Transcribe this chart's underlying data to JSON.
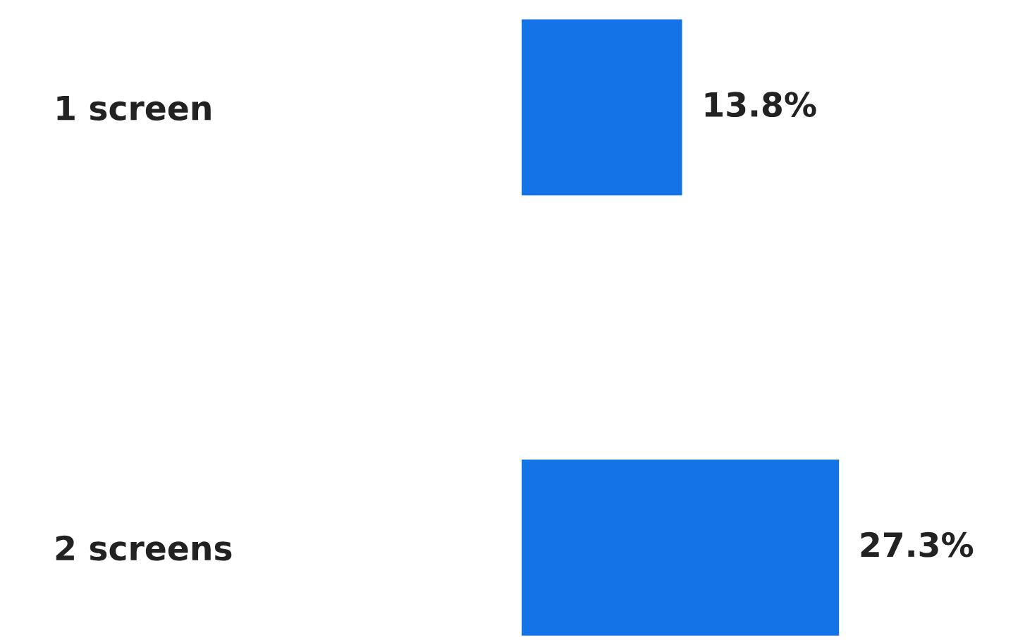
{
  "chart_data": {
    "type": "bar",
    "orientation": "horizontal",
    "categories": [
      "1 screen",
      "2 screens"
    ],
    "values": [
      13.8,
      27.3
    ],
    "color": "#1473e6",
    "value_labels": [
      "13.8%",
      "27.3%"
    ],
    "grid": false,
    "legend": false
  }
}
